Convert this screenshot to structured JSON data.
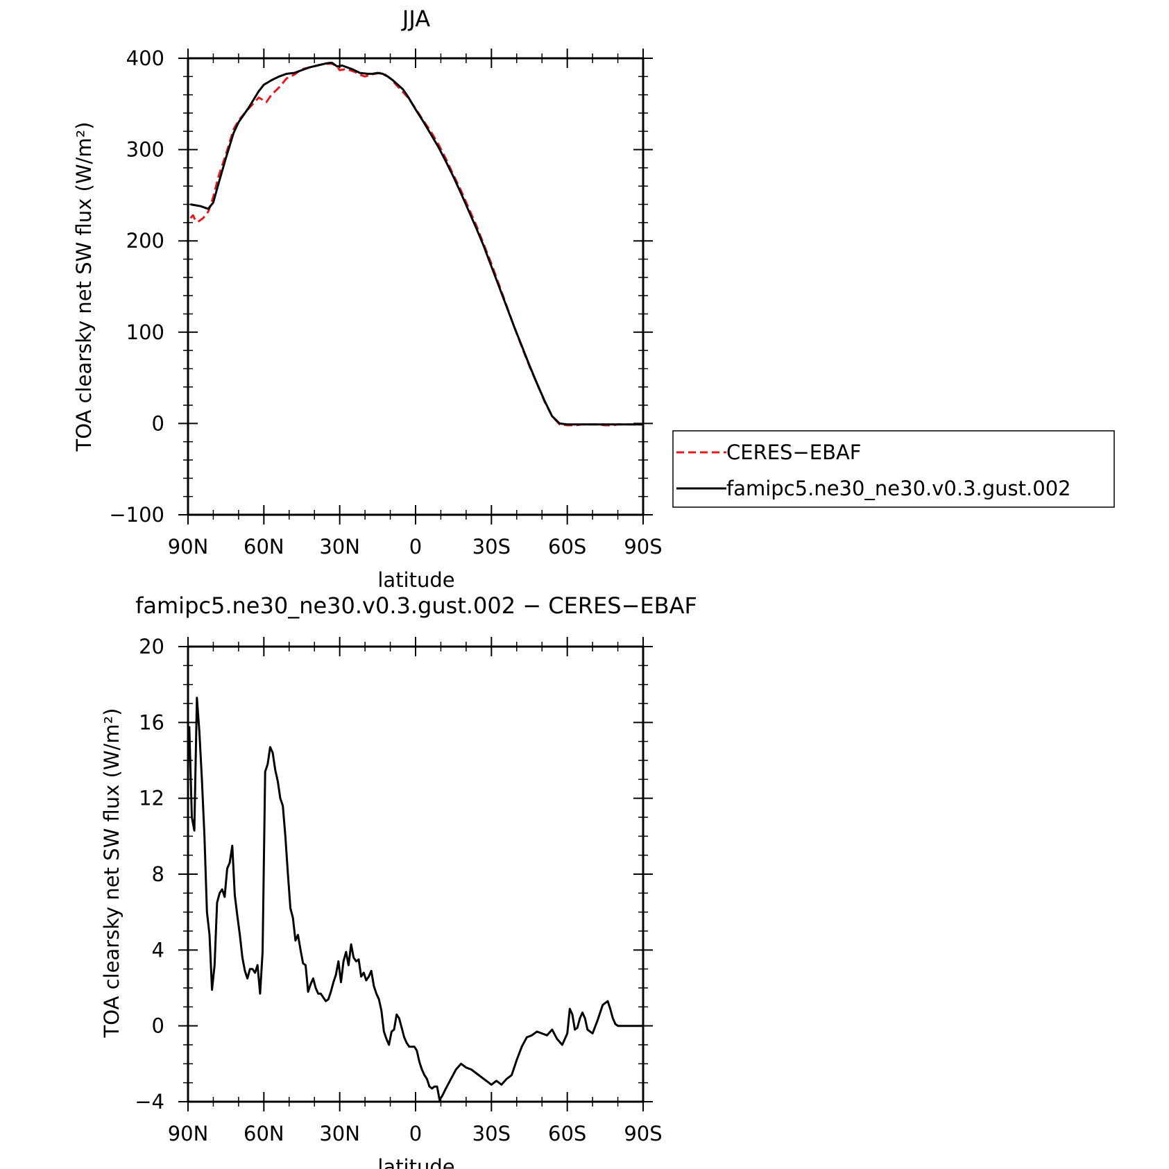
{
  "colors": {
    "obs": "#e8191c",
    "model": "#000000"
  },
  "chart_data": [
    {
      "type": "line",
      "title": "JJA",
      "xlabel": "latitude",
      "ylabel": "TOA clearsky net SW flux (W/m²)",
      "xlim": [
        90,
        -90
      ],
      "ylim": [
        -100,
        400
      ],
      "xticks": [
        90,
        60,
        30,
        0,
        -30,
        -60,
        -90
      ],
      "xtick_labels": [
        "90N",
        "60N",
        "30N",
        "0",
        "30S",
        "60S",
        "90S"
      ],
      "yticks": [
        -100,
        0,
        100,
        200,
        300,
        400
      ],
      "ytick_labels": [
        "−100",
        "0",
        "100",
        "200",
        "300",
        "400"
      ],
      "grid": false,
      "legend": "right-outside",
      "series": [
        {
          "name": "CERES−EBAF",
          "style": "dashed",
          "color": "#e8191c",
          "x": [
            89,
            88,
            87,
            86,
            84,
            82,
            80,
            78,
            75,
            72,
            70,
            66,
            62,
            59,
            57,
            54,
            51,
            48,
            45,
            42,
            39,
            36,
            33,
            31,
            30,
            28,
            26,
            24,
            22,
            20,
            18,
            16,
            14,
            12,
            10,
            8,
            6,
            3,
            0,
            -3,
            -6,
            -9,
            -12,
            -15,
            -18,
            -21,
            -24,
            -27,
            -30,
            -33,
            -36,
            -39,
            -42,
            -45,
            -48,
            -51,
            -54,
            -57,
            -60,
            -63,
            -66,
            -69,
            -72,
            -75,
            -78,
            -80,
            -83,
            -86,
            -90
          ],
          "y": [
            225,
            228,
            222,
            221,
            225,
            232,
            248,
            270,
            295,
            322,
            332,
            345,
            357,
            352,
            360,
            368,
            378,
            382,
            388,
            390,
            392,
            394,
            394,
            391,
            387,
            388,
            387,
            385,
            382,
            380,
            382,
            383,
            384,
            382,
            378,
            372,
            366,
            357,
            345,
            332,
            320,
            306,
            290,
            272,
            255,
            236,
            217,
            196,
            175,
            152,
            129,
            106,
            84,
            63,
            44,
            24,
            8,
            -1,
            -2,
            -2,
            -1,
            -1,
            -1,
            -2,
            -2,
            -1,
            -1,
            -1,
            -1
          ]
        },
        {
          "name": "famipc5.ne30_ne30.v0.3.gust.002",
          "style": "solid",
          "color": "#000000",
          "x": [
            89,
            87,
            85,
            83,
            82,
            80,
            78,
            75,
            72,
            70,
            66,
            62,
            60,
            57,
            54,
            51,
            48,
            45,
            42,
            39,
            36,
            34,
            33,
            31,
            29,
            27,
            25,
            22,
            19,
            17,
            15,
            13,
            11,
            9,
            7,
            5,
            3,
            0,
            -3,
            -6,
            -9,
            -12,
            -15,
            -18,
            -21,
            -24,
            -27,
            -30,
            -33,
            -36,
            -39,
            -42,
            -45,
            -48,
            -51,
            -54,
            -57,
            -60,
            -63,
            -66,
            -69,
            -72,
            -75,
            -78,
            -81,
            -84,
            -87,
            -90
          ],
          "y": [
            240,
            239,
            238,
            236,
            235,
            242,
            262,
            291,
            318,
            330,
            346,
            364,
            371,
            376,
            380,
            383,
            384,
            387,
            390,
            392,
            394,
            395,
            395,
            391,
            392,
            390,
            388,
            384,
            383,
            383,
            384,
            383,
            380,
            376,
            371,
            366,
            358,
            344,
            331,
            317,
            303,
            287,
            270,
            252,
            233,
            214,
            194,
            172,
            150,
            128,
            106,
            85,
            64,
            44,
            25,
            8,
            0,
            -1,
            -1,
            -1,
            -1,
            -1,
            -1,
            -1,
            -1,
            -1,
            -1,
            -1
          ]
        }
      ]
    },
    {
      "type": "line",
      "title": "famipc5.ne30_ne30.v0.3.gust.002 − CERES−EBAF",
      "xlabel": "latitude",
      "ylabel": "TOA clearsky net SW flux (W/m²)",
      "xlim": [
        90,
        -90
      ],
      "ylim": [
        -4,
        20
      ],
      "xticks": [
        90,
        60,
        30,
        0,
        -30,
        -60,
        -90
      ],
      "xtick_labels": [
        "90N",
        "60N",
        "30N",
        "0",
        "30S",
        "60S",
        "90S"
      ],
      "yticks": [
        -4,
        0,
        4,
        8,
        12,
        16,
        20
      ],
      "ytick_labels": [
        "−4",
        "0",
        "4",
        "8",
        "12",
        "16",
        "20"
      ],
      "grid": false,
      "series": [
        {
          "name": "",
          "style": "solid",
          "color": "#000000",
          "x": [
            89.5,
            88.5,
            87.5,
            86.5,
            85.5,
            84.5,
            83.5,
            82.5,
            81.5,
            80.5,
            79.5,
            78.5,
            77.5,
            76.5,
            75.5,
            74.5,
            73.5,
            72.5,
            71.5,
            70.5,
            69.5,
            68.5,
            67.5,
            66.5,
            65.5,
            64.5,
            63.5,
            62.5,
            61.5,
            60.5,
            59.5,
            58.5,
            57.5,
            56.5,
            55.5,
            54.5,
            53.5,
            52.5,
            51.5,
            50.5,
            49.5,
            48.5,
            47.5,
            46.5,
            45.5,
            44.5,
            43.5,
            42.5,
            41.5,
            40.5,
            39.5,
            38.5,
            37.5,
            36.5,
            35.5,
            34.5,
            33.5,
            32.5,
            31.5,
            30.5,
            29.5,
            28.5,
            27.5,
            26.5,
            25.5,
            24.5,
            23.5,
            22.5,
            21.5,
            20.5,
            19.5,
            18.5,
            17.5,
            16.5,
            15.5,
            14.5,
            13.5,
            12.5,
            11.5,
            10.5,
            9.5,
            8.5,
            7.5,
            6.5,
            5.5,
            4.5,
            3.5,
            2.5,
            1.5,
            0.5,
            -0.5,
            -1.5,
            -2.5,
            -3.5,
            -4.5,
            -5.5,
            -6.5,
            -7.5,
            -8.5,
            -9.5,
            -10.5,
            -12,
            -14,
            -16,
            -18,
            -20,
            -22,
            -24,
            -26,
            -28,
            -30,
            -32,
            -34,
            -36,
            -38,
            -40,
            -42,
            -44,
            -46,
            -48,
            -50,
            -52,
            -54,
            -56,
            -58,
            -60,
            -61,
            -62,
            -63,
            -64,
            -65,
            -66,
            -67,
            -68,
            -70,
            -72,
            -74,
            -76,
            -77,
            -78,
            -79,
            -80,
            -82,
            -84,
            -86,
            -88,
            -90
          ],
          "y": [
            15.8,
            11,
            10.3,
            17.3,
            15.5,
            13,
            10,
            6,
            4.8,
            1.9,
            3.2,
            6.5,
            7,
            7.2,
            6.8,
            8.3,
            8.6,
            9.5,
            6.9,
            5.8,
            4.8,
            3.6,
            2.9,
            2.5,
            3,
            3,
            2.8,
            3.2,
            1.7,
            3.9,
            13.4,
            13.8,
            14.7,
            14.4,
            13.5,
            12.9,
            12,
            11.6,
            10,
            8,
            6.2,
            5.7,
            4.5,
            4.8,
            4,
            3.3,
            3.2,
            1.8,
            2.2,
            2.5,
            2,
            1.7,
            1.7,
            1.5,
            1.3,
            1.4,
            1.8,
            2.3,
            2.7,
            3.4,
            2.3,
            3.4,
            3.9,
            3.2,
            4.3,
            3.6,
            3.4,
            3.5,
            2.6,
            2.8,
            2.4,
            2.6,
            2.9,
            2.1,
            1.7,
            1.4,
            0.8,
            -0.3,
            -0.7,
            -1,
            -0.3,
            -0.2,
            0.6,
            0.4,
            -0.1,
            -0.6,
            -0.9,
            -1.1,
            -1.1,
            -1.1,
            -1.3,
            -1.9,
            -2.3,
            -2.6,
            -2.8,
            -3.2,
            -3.3,
            -3.2,
            -3.2,
            -3.9,
            -3.7,
            -3.3,
            -2.8,
            -2.3,
            -2,
            -2.2,
            -2.3,
            -2.5,
            -2.7,
            -2.9,
            -3.1,
            -2.9,
            -3.1,
            -2.8,
            -2.6,
            -1.8,
            -1.1,
            -0.6,
            -0.5,
            -0.3,
            -0.4,
            -0.5,
            -0.2,
            -0.7,
            -1,
            -0.4,
            0.9,
            0.6,
            -0.2,
            -0.1,
            0.4,
            0.7,
            0.4,
            -0.2,
            -0.4,
            0.3,
            1.1,
            1.3,
            0.9,
            0.4,
            0.1,
            0,
            0,
            0,
            0,
            0,
            0
          ]
        }
      ]
    }
  ]
}
